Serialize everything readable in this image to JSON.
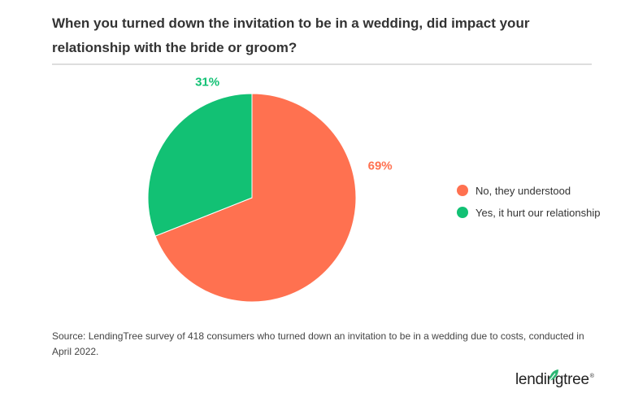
{
  "title": "When you turned down the invitation to be in a wedding, did impact your relationship with the bride or groom?",
  "source": "Source: LendingTree survey of 418 consumers who turned down an invitation to be in a wedding due to costs, conducted in April 2022.",
  "logo": {
    "text": "lendingtree",
    "reg": "®",
    "icon": "leaf-icon",
    "color": "#2bb673"
  },
  "chart_data": {
    "type": "pie",
    "title": "When you turned down the invitation to be in a wedding, did impact your relationship with the bride or groom?",
    "slices": [
      {
        "label": "No, they understood",
        "value": 69,
        "display": "69%",
        "color": "#ff7150"
      },
      {
        "label": "Yes, it hurt our relationship",
        "value": 31,
        "display": "31%",
        "color": "#12c174"
      }
    ],
    "legend_position": "right",
    "start_angle": "12 o'clock, clockwise"
  }
}
